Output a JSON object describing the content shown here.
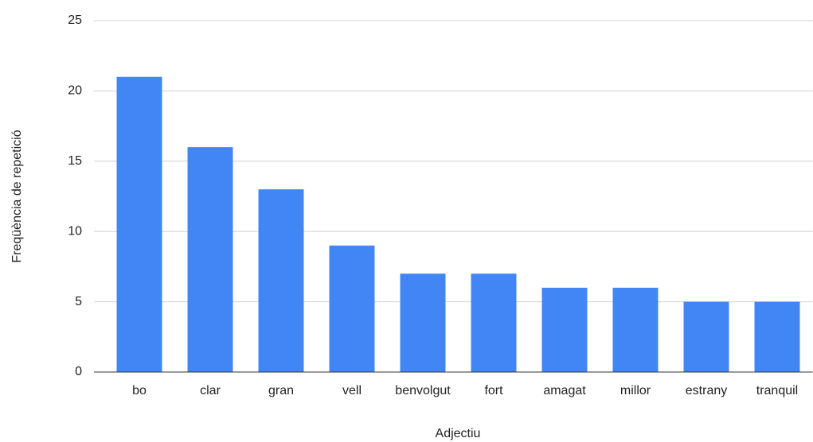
{
  "chart_data": {
    "type": "bar",
    "x_label": "Adjectiu",
    "y_label": "Freqüència de repetició",
    "categories": [
      "bo",
      "clar",
      "gran",
      "vell",
      "benvolgut",
      "fort",
      "amagat",
      "millor",
      "estrany",
      "tranquil"
    ],
    "values": [
      21,
      16,
      13,
      9,
      7,
      7,
      6,
      6,
      5,
      5
    ],
    "color": "#4285f4",
    "ylim": [
      0,
      25
    ],
    "yticks": [
      0,
      5,
      10,
      15,
      20,
      25
    ],
    "grid": true
  }
}
